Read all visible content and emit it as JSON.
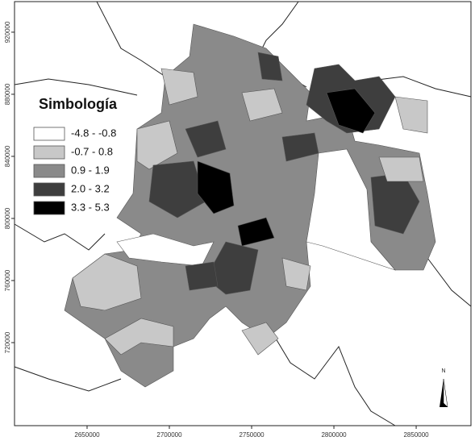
{
  "map": {
    "legend": {
      "title": "Simbología",
      "classes": [
        {
          "label": "-4.8 - -0.8",
          "color": "#ffffff"
        },
        {
          "label": "-0.7 - 0.8",
          "color": "#c8c8c8"
        },
        {
          "label": "0.9 - 1.9",
          "color": "#8a8a8a"
        },
        {
          "label": "2.0 - 3.2",
          "color": "#3e3e3e"
        },
        {
          "label": "3.3 - 5.3",
          "color": "#000000"
        }
      ]
    },
    "xlim": [
      2605900,
      2883300
    ],
    "ylim": [
      666500,
      939700
    ],
    "xticks": [
      2650000,
      2700000,
      2750000,
      2800000,
      2850000
    ],
    "yticks": [
      920000,
      880000,
      840000,
      800000,
      760000,
      720000
    ],
    "north_label": "N"
  }
}
